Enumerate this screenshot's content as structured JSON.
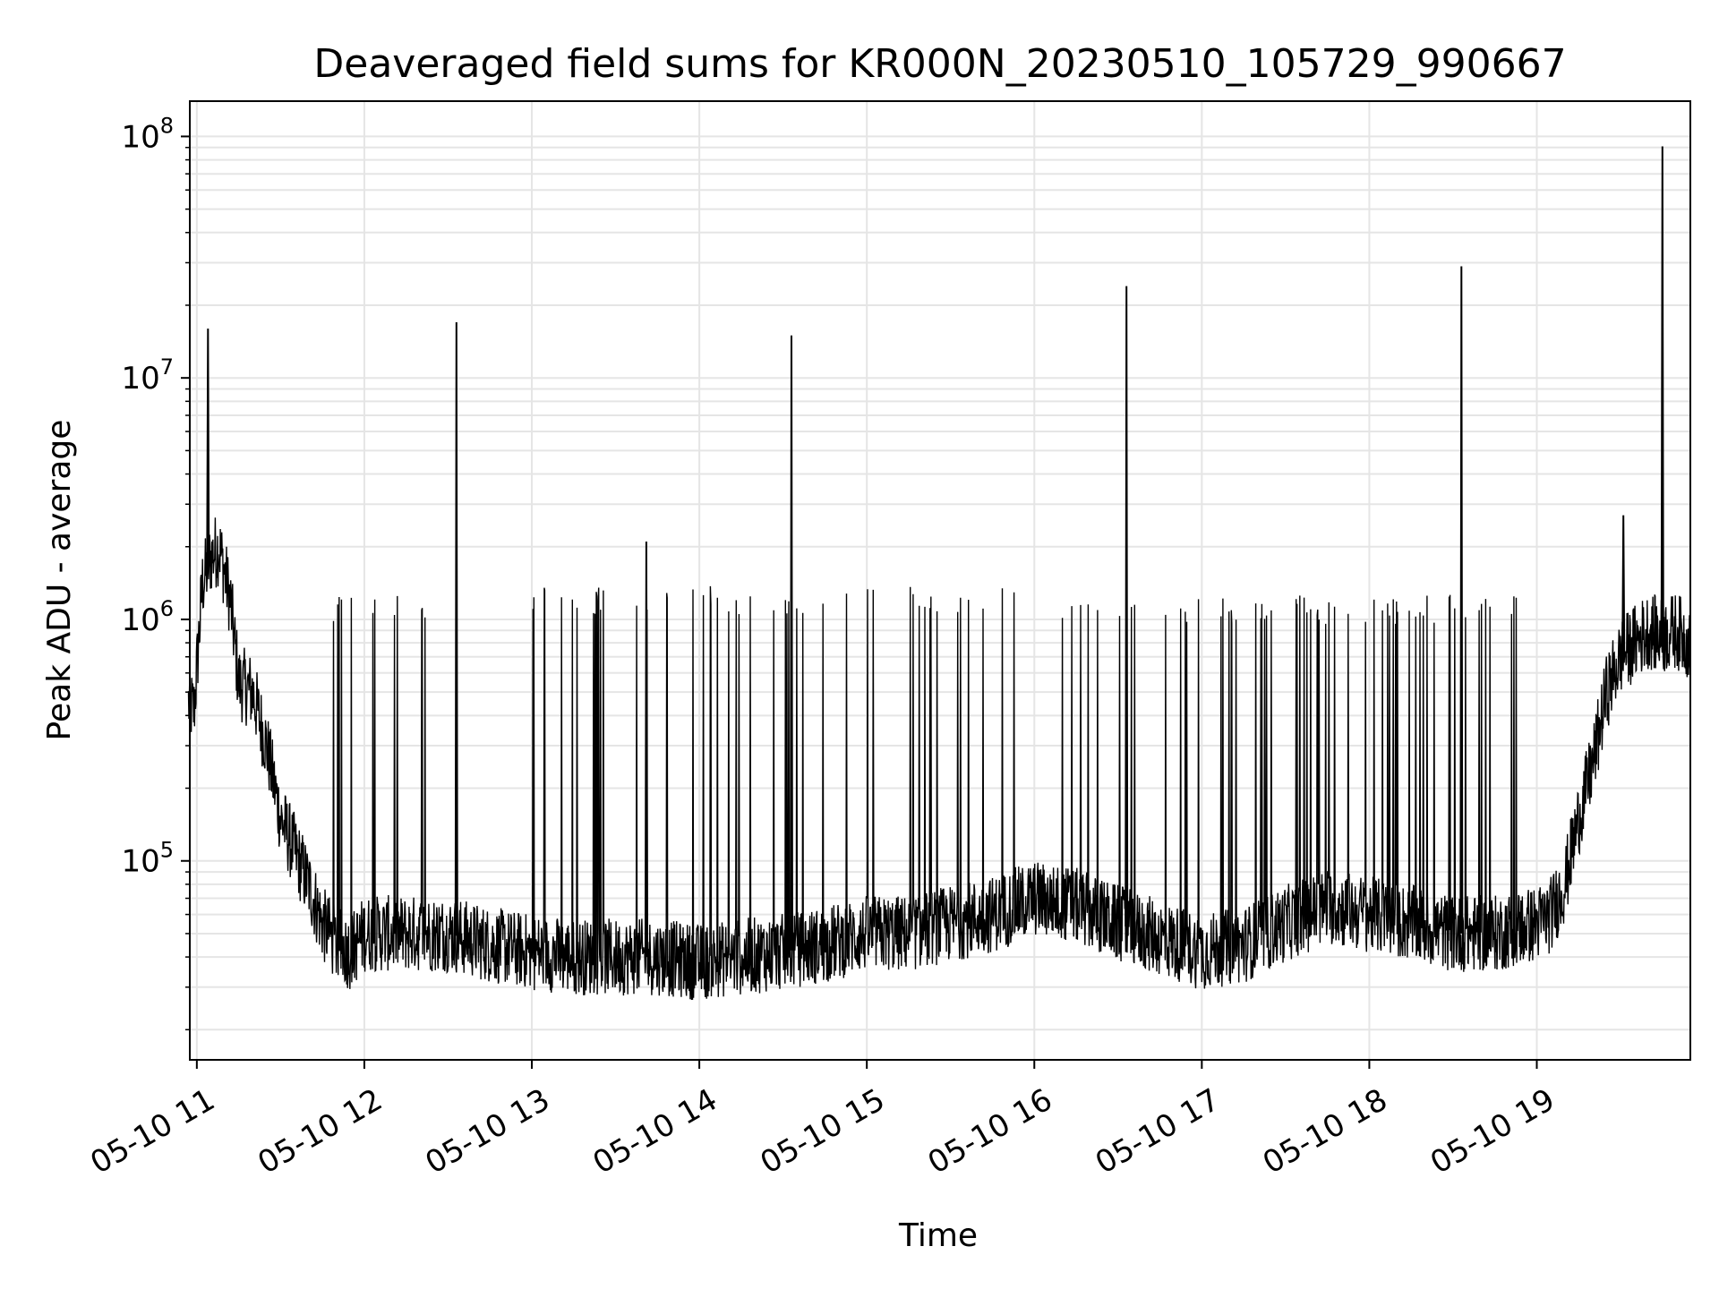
{
  "chart_data": {
    "type": "line",
    "title": "Deaveraged field sums for KR000N_20230510_105729_990667",
    "xlabel": "Time",
    "ylabel": "Peak ADU - average",
    "yscale": "log",
    "xlim": [
      "2023-05-10 10:57:29",
      "2023-05-10 19:55:00"
    ],
    "ylim": [
      15000,
      140000000
    ],
    "grid": true,
    "colors": {
      "line": "#000000",
      "grid": "#e5e5e5",
      "background": "#ffffff"
    },
    "x_ticks": [
      {
        "time": "2023-05-10 11:00",
        "label": "05-10 11"
      },
      {
        "time": "2023-05-10 12:00",
        "label": "05-10 12"
      },
      {
        "time": "2023-05-10 13:00",
        "label": "05-10 13"
      },
      {
        "time": "2023-05-10 14:00",
        "label": "05-10 14"
      },
      {
        "time": "2023-05-10 15:00",
        "label": "05-10 15"
      },
      {
        "time": "2023-05-10 16:00",
        "label": "05-10 16"
      },
      {
        "time": "2023-05-10 17:00",
        "label": "05-10 17"
      },
      {
        "time": "2023-05-10 18:00",
        "label": "05-10 18"
      },
      {
        "time": "2023-05-10 19:00",
        "label": "05-10 19"
      }
    ],
    "y_ticks": [
      {
        "value": 100000,
        "base": "10",
        "exp": "5"
      },
      {
        "value": 1000000,
        "base": "10",
        "exp": "6"
      },
      {
        "value": 10000000,
        "base": "10",
        "exp": "7"
      },
      {
        "value": 100000000,
        "base": "10",
        "exp": "8"
      }
    ],
    "series": [
      {
        "x": [
          "2023-05-10 10:57",
          "2023-05-10 10:59",
          "2023-05-10 11:02",
          "2023-05-10 11:05",
          "2023-05-10 11:08",
          "2023-05-10 11:12",
          "2023-05-10 11:15",
          "2023-05-10 11:20",
          "2023-05-10 11:25",
          "2023-05-10 11:30",
          "2023-05-10 11:35",
          "2023-05-10 11:40",
          "2023-05-10 11:45",
          "2023-05-10 11:50",
          "2023-05-10 11:55",
          "2023-05-10 12:00",
          "2023-05-10 12:15",
          "2023-05-10 12:30",
          "2023-05-10 12:45",
          "2023-05-10 13:00",
          "2023-05-10 13:15",
          "2023-05-10 13:30",
          "2023-05-10 13:45",
          "2023-05-10 14:00",
          "2023-05-10 14:15",
          "2023-05-10 14:30",
          "2023-05-10 14:45",
          "2023-05-10 15:00",
          "2023-05-10 15:15",
          "2023-05-10 15:30",
          "2023-05-10 15:45",
          "2023-05-10 16:00",
          "2023-05-10 16:15",
          "2023-05-10 16:30",
          "2023-05-10 16:45",
          "2023-05-10 17:00",
          "2023-05-10 17:15",
          "2023-05-10 17:30",
          "2023-05-10 17:45",
          "2023-05-10 18:00",
          "2023-05-10 18:15",
          "2023-05-10 18:30",
          "2023-05-10 18:45",
          "2023-05-10 19:00",
          "2023-05-10 19:05",
          "2023-05-10 19:10",
          "2023-05-10 19:15",
          "2023-05-10 19:20",
          "2023-05-10 19:25",
          "2023-05-10 19:30",
          "2023-05-10 19:35",
          "2023-05-10 19:40",
          "2023-05-10 19:45",
          "2023-05-10 19:50",
          "2023-05-10 19:55"
        ],
        "values": [
          450000,
          420000,
          1400000,
          1800000,
          2000000,
          1200000,
          550000,
          500000,
          300000,
          150000,
          110000,
          80000,
          55000,
          45000,
          42000,
          50000,
          50000,
          50000,
          45000,
          42000,
          40000,
          40000,
          40000,
          38000,
          40000,
          42000,
          45000,
          50000,
          50000,
          55000,
          60000,
          70000,
          65000,
          55000,
          48000,
          42000,
          45000,
          55000,
          65000,
          60000,
          55000,
          50000,
          50000,
          55000,
          60000,
          80000,
          150000,
          250000,
          500000,
          700000,
          800000,
          900000,
          850000,
          900000,
          800000
        ]
      }
    ],
    "spikes": [
      {
        "x": "2023-05-10 11:04",
        "value": 16000000
      },
      {
        "x": "2023-05-10 12:33",
        "value": 17000000
      },
      {
        "x": "2023-05-10 14:33",
        "value": 15000000
      },
      {
        "x": "2023-05-10 16:33",
        "value": 24000000
      },
      {
        "x": "2023-05-10 18:33",
        "value": 29000000
      },
      {
        "x": "2023-05-10 19:45",
        "value": 91000000
      },
      {
        "x": "2023-05-10 13:41",
        "value": 2100000
      },
      {
        "x": "2023-05-10 19:31",
        "value": 2700000
      }
    ],
    "spike_band": {
      "regions": [
        {
          "start": "2023-05-10 11:48",
          "end": "2023-05-10 12:25",
          "value": 1100000
        },
        {
          "start": "2023-05-10 13:00",
          "end": "2023-05-10 15:55",
          "value": 1200000
        },
        {
          "start": "2023-05-10 16:10",
          "end": "2023-05-10 18:55",
          "value": 1100000
        }
      ]
    }
  }
}
